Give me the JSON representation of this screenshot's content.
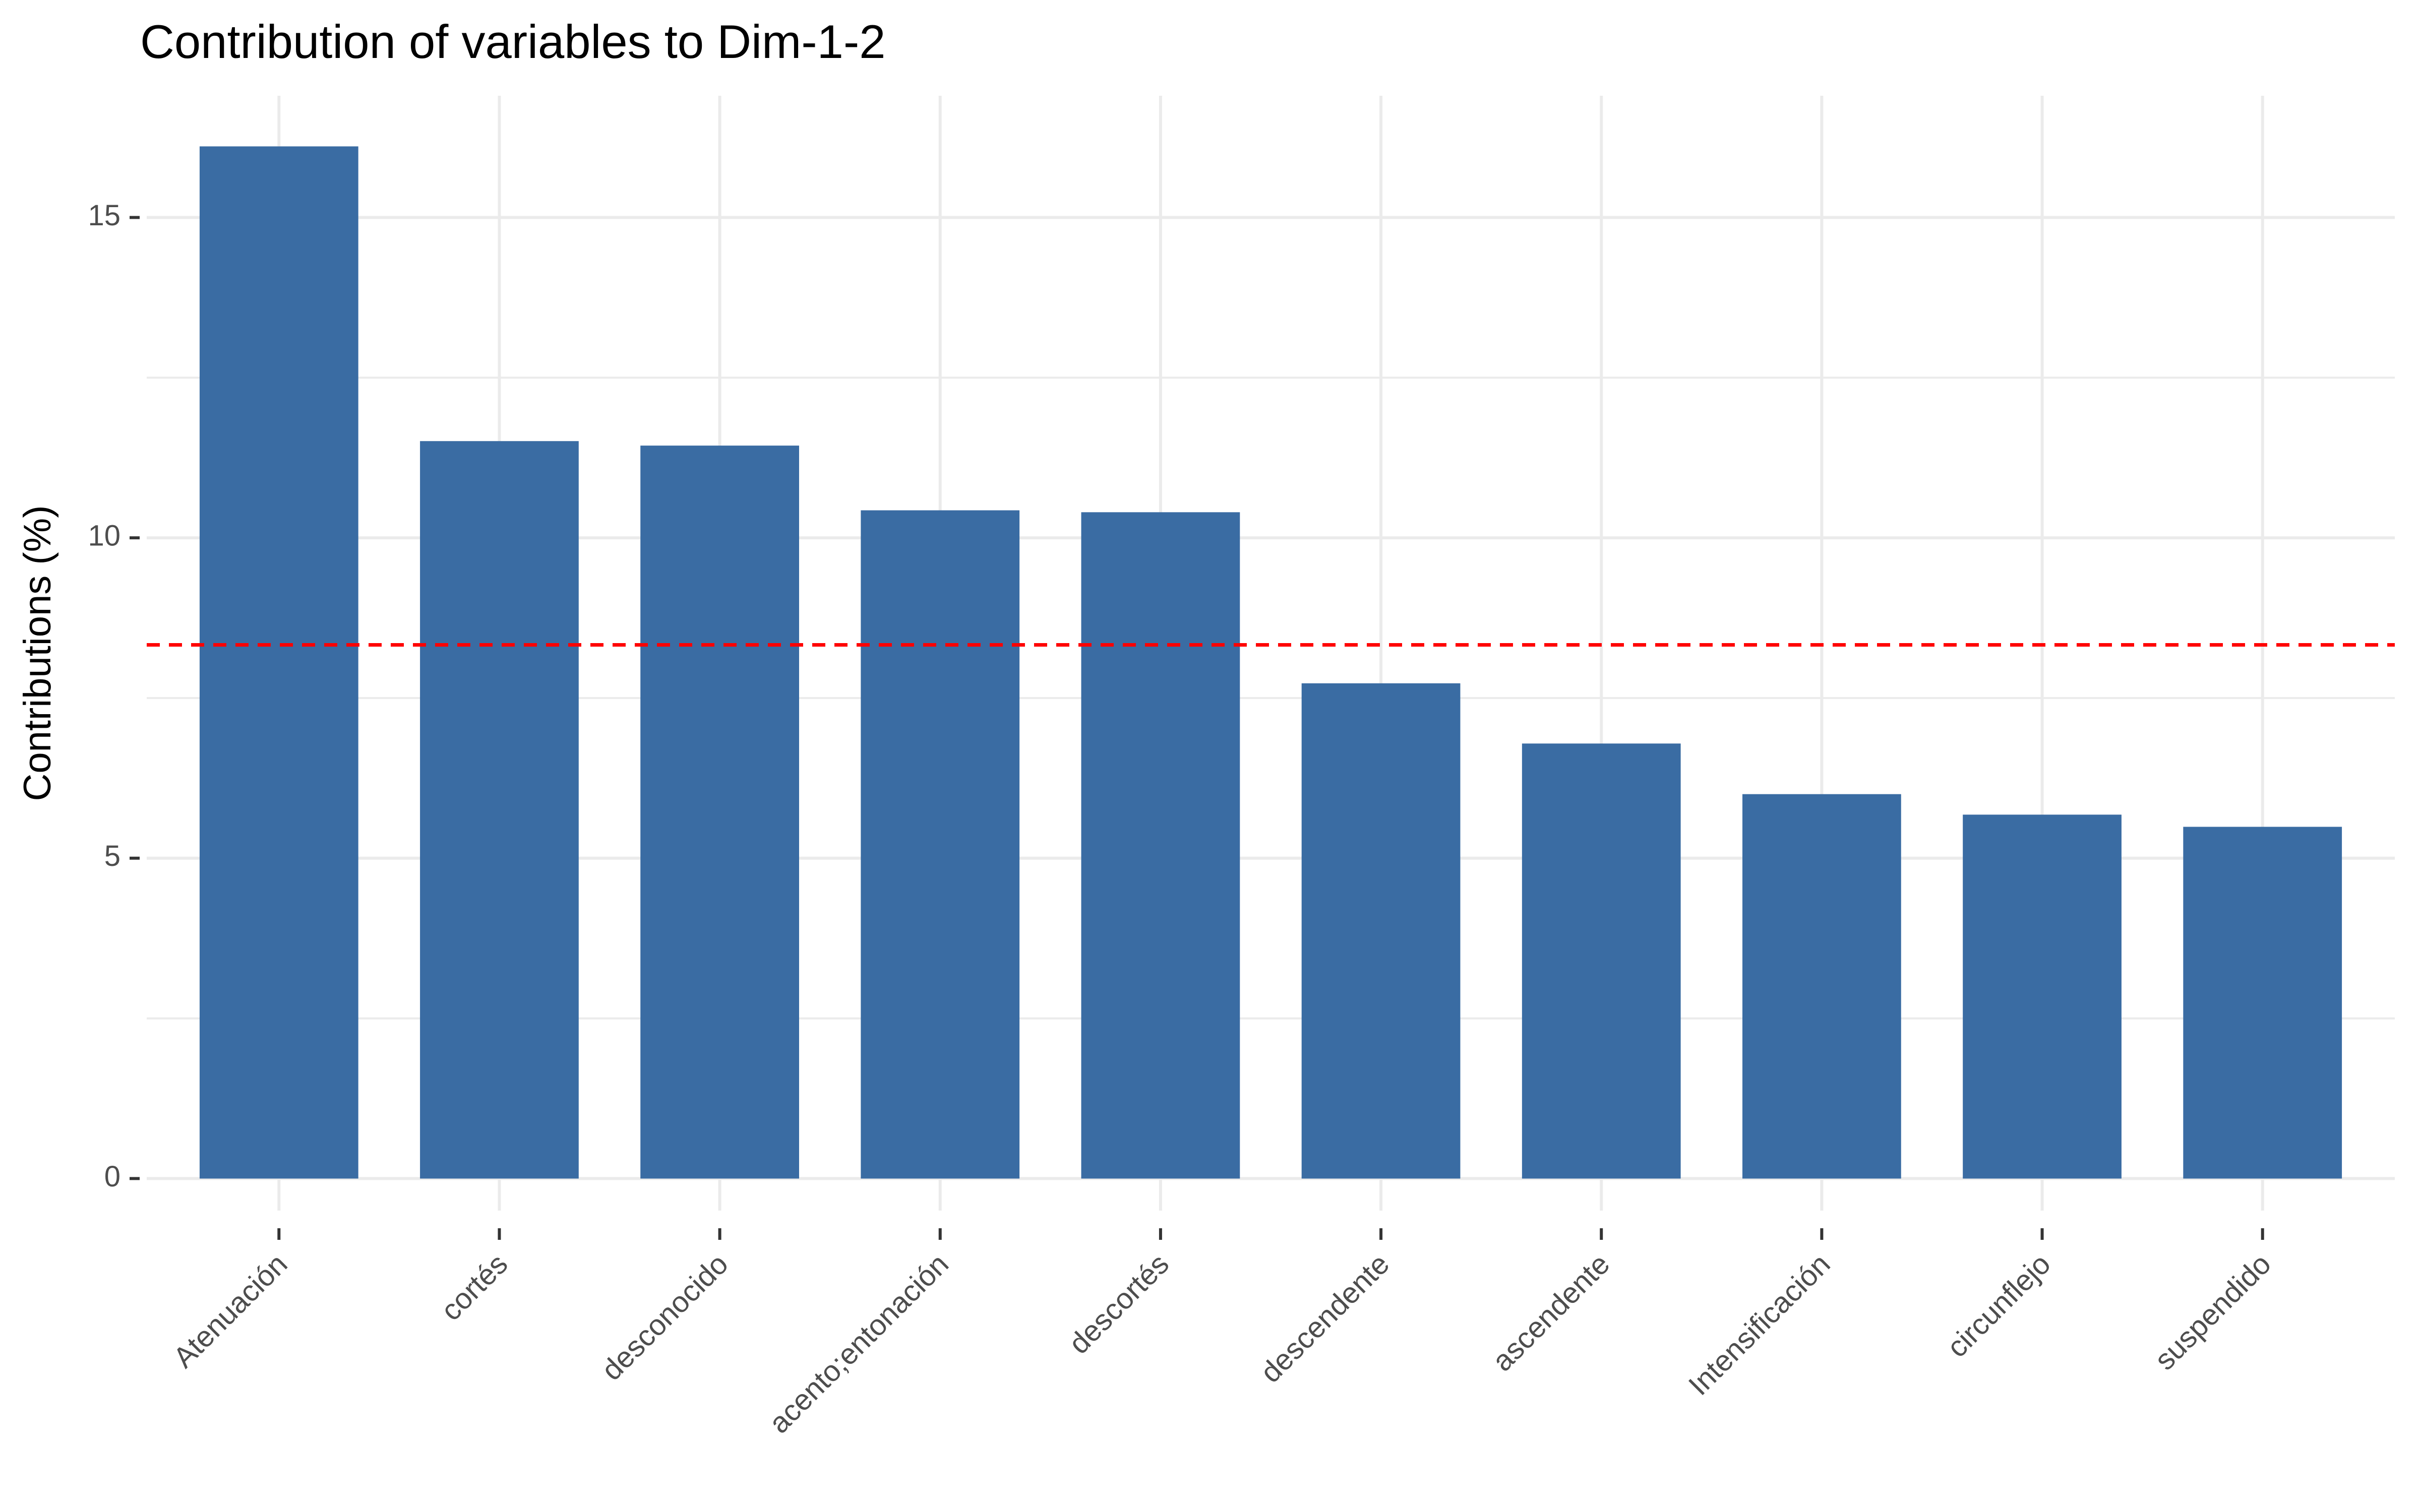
{
  "chart_data": {
    "type": "bar",
    "title": "Contribution of variables to Dim-1-2",
    "y_label": "Contributions (%)",
    "categories": [
      "Atenuación",
      "cortés",
      "desconocido",
      "acento;entonación",
      "descortés",
      "descendente",
      "ascendente",
      "Intensificación",
      "circunflejo",
      "suspendido"
    ],
    "values": [
      16.11,
      11.51,
      11.44,
      10.43,
      10.4,
      7.73,
      6.79,
      6.0,
      5.68,
      5.49
    ],
    "color": "#3a6ca3",
    "ylim": [
      -0.5,
      16.9
    ],
    "yticks": [
      0,
      5,
      10,
      15
    ],
    "minor_yticks": [
      2.5,
      7.5,
      12.5
    ],
    "grid": true,
    "reference_line": 8.33,
    "reference_line_color": "#ff0000"
  }
}
